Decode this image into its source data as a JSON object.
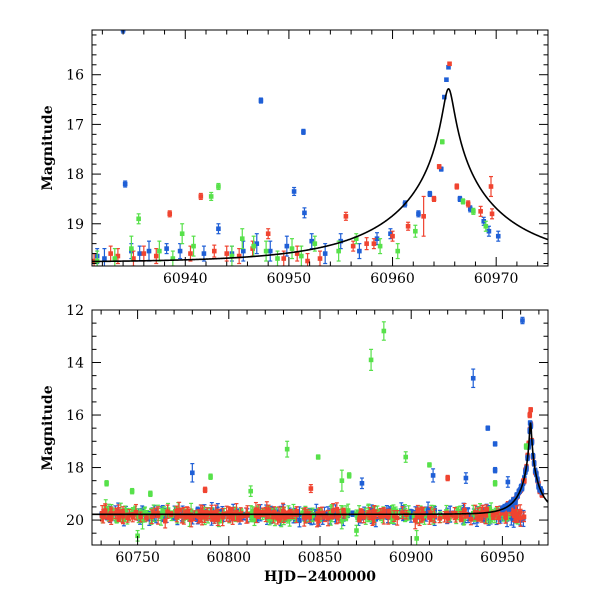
{
  "chart_data": [
    {
      "type": "scatter",
      "panel": "top",
      "xlim": [
        60931,
        60975
      ],
      "ylim": [
        19.85,
        15.1
      ],
      "xlabel": "",
      "ylabel": "Magnitude",
      "xticks_major": [
        60940,
        60950,
        60960,
        60970
      ],
      "xtick_labels": [
        "60940",
        "60950",
        "60960",
        "60970"
      ],
      "xticks_minor_step": 2,
      "yticks_major": [
        16,
        17,
        18,
        19
      ],
      "ytick_labels": [
        "16",
        "17",
        "18",
        "19"
      ],
      "yticks_minor_step": 0.2,
      "series_colors": {
        "blue": "#1f5fd6",
        "red": "#f04430",
        "green": "#57e14a"
      },
      "model": {
        "name": "PSPL fit",
        "color": "#000000",
        "t0": 60965.4,
        "u0": 0.04,
        "tE": 12,
        "base_mag": 19.78
      },
      "series": [
        {
          "name": "blue",
          "points": [
            [
              60931.5,
              19.65,
              0.15
            ],
            [
              60932.2,
              19.7,
              0.2
            ],
            [
              60934.0,
              15.1,
              0.06
            ],
            [
              60934.2,
              18.2,
              0.06
            ],
            [
              60934.8,
              19.55,
              0.15
            ],
            [
              60935.6,
              19.6,
              0.15
            ],
            [
              60936.5,
              19.55,
              0.2
            ],
            [
              60938.2,
              19.5,
              0.1
            ],
            [
              60939.5,
              19.55,
              0.15
            ],
            [
              60941.8,
              19.6,
              0.15
            ],
            [
              60943.2,
              19.1,
              0.1
            ],
            [
              60944.5,
              19.6,
              0.15
            ],
            [
              60945.6,
              19.55,
              0.2
            ],
            [
              60946.9,
              19.4,
              0.2
            ],
            [
              60947.3,
              16.52,
              0.05
            ],
            [
              60948.2,
              19.55,
              0.2
            ],
            [
              60949.8,
              19.45,
              0.2
            ],
            [
              60950.5,
              18.35,
              0.08
            ],
            [
              60951.4,
              17.15,
              0.05
            ],
            [
              60951.5,
              18.78,
              0.1
            ],
            [
              60952.2,
              19.35,
              0.15
            ],
            [
              60953.5,
              19.6,
              0.2
            ],
            [
              60955.0,
              19.35,
              0.15
            ],
            [
              60956.8,
              19.55,
              0.15
            ],
            [
              60958.5,
              19.3,
              0.12
            ],
            [
              60959.8,
              19.2,
              0.1
            ],
            [
              60961.2,
              18.6,
              0.06
            ],
            [
              60962.5,
              18.8,
              0.06
            ],
            [
              60963.6,
              18.4,
              0.05
            ],
            [
              60964.7,
              17.9,
              0.04
            ],
            [
              60965.0,
              16.45,
              0.03
            ],
            [
              60965.2,
              16.1,
              0.03
            ],
            [
              60965.4,
              15.85,
              0.03
            ],
            [
              60966.5,
              18.5,
              0.05
            ],
            [
              60967.5,
              18.7,
              0.06
            ],
            [
              60968.8,
              18.95,
              0.08
            ],
            [
              60969.3,
              19.15,
              0.1
            ],
            [
              60970.2,
              19.25,
              0.1
            ]
          ]
        },
        {
          "name": "red",
          "points": [
            [
              60931.2,
              19.75,
              0.15
            ],
            [
              60932.8,
              19.6,
              0.15
            ],
            [
              60933.5,
              19.65,
              0.15
            ],
            [
              60935.0,
              19.7,
              0.15
            ],
            [
              60936.0,
              19.6,
              0.15
            ],
            [
              60937.2,
              19.65,
              0.15
            ],
            [
              60938.5,
              18.8,
              0.06
            ],
            [
              60940.5,
              19.6,
              0.15
            ],
            [
              60941.5,
              18.45,
              0.06
            ],
            [
              60942.8,
              19.55,
              0.12
            ],
            [
              60944.0,
              19.6,
              0.15
            ],
            [
              60945.2,
              19.65,
              0.15
            ],
            [
              60946.5,
              19.5,
              0.15
            ],
            [
              60948.0,
              19.2,
              0.1
            ],
            [
              60949.5,
              19.7,
              0.15
            ],
            [
              60950.8,
              19.6,
              0.15
            ],
            [
              60951.8,
              19.75,
              0.15
            ],
            [
              60953.0,
              19.7,
              0.15
            ],
            [
              60955.5,
              18.85,
              0.08
            ],
            [
              60956.2,
              19.45,
              0.1
            ],
            [
              60957.5,
              19.4,
              0.12
            ],
            [
              60958.2,
              19.4,
              0.1
            ],
            [
              60960.0,
              19.25,
              0.1
            ],
            [
              60961.5,
              19.05,
              0.08
            ],
            [
              60963.0,
              18.85,
              0.4
            ],
            [
              60964.0,
              18.5,
              0.05
            ],
            [
              60964.5,
              17.85,
              0.04
            ],
            [
              60965.5,
              15.78,
              0.03
            ],
            [
              60966.2,
              18.25,
              0.05
            ],
            [
              60967.3,
              18.6,
              0.06
            ],
            [
              60968.5,
              18.75,
              0.1
            ],
            [
              60969.5,
              18.25,
              0.2
            ],
            [
              60969.6,
              18.8,
              0.1
            ]
          ]
        },
        {
          "name": "green",
          "points": [
            [
              60931.5,
              19.75,
              0.2
            ],
            [
              60933.2,
              19.7,
              0.2
            ],
            [
              60934.8,
              19.5,
              0.25
            ],
            [
              60935.5,
              18.9,
              0.1
            ],
            [
              60937.5,
              19.55,
              0.2
            ],
            [
              60938.8,
              19.7,
              0.15
            ],
            [
              60939.7,
              19.2,
              0.2
            ],
            [
              60940.8,
              19.45,
              0.2
            ],
            [
              60942.5,
              18.45,
              0.08
            ],
            [
              60943.2,
              18.25,
              0.06
            ],
            [
              60944.5,
              19.65,
              0.2
            ],
            [
              60945.5,
              19.3,
              0.2
            ],
            [
              60946.6,
              19.45,
              0.2
            ],
            [
              60947.8,
              19.55,
              0.2
            ],
            [
              60948.9,
              19.7,
              0.15
            ],
            [
              60950.3,
              19.5,
              0.2
            ],
            [
              60951.2,
              19.65,
              0.2
            ],
            [
              60952.5,
              19.4,
              0.15
            ],
            [
              60954.8,
              19.55,
              0.2
            ],
            [
              60956.5,
              19.3,
              0.1
            ],
            [
              60958.8,
              19.45,
              0.15
            ],
            [
              60960.5,
              19.55,
              0.15
            ],
            [
              60962.2,
              19.15,
              0.12
            ],
            [
              60964.8,
              17.35,
              0.04
            ],
            [
              60966.8,
              18.55,
              0.05
            ],
            [
              60967.8,
              18.75,
              0.06
            ],
            [
              60969.0,
              19.05,
              0.1
            ]
          ]
        }
      ]
    },
    {
      "type": "scatter",
      "panel": "bottom",
      "xlim": [
        60725,
        60975
      ],
      "ylim": [
        20.95,
        12.0
      ],
      "xlabel": "HJD−2400000",
      "ylabel": "Magnitude",
      "xticks_major": [
        60750,
        60800,
        60850,
        60900,
        60950
      ],
      "xtick_labels": [
        "60750",
        "60800",
        "60850",
        "60900",
        "60950"
      ],
      "xticks_minor_step": 10,
      "yticks_major": [
        12,
        14,
        16,
        18,
        20
      ],
      "ytick_labels": [
        "12",
        "14",
        "16",
        "18",
        "20"
      ],
      "yticks_minor_step": 0.5,
      "model": {
        "name": "PSPL fit",
        "color": "#000000",
        "t0": 60965.4,
        "u0": 0.04,
        "tE": 12,
        "base_mag": 19.78
      },
      "baseline_band": {
        "mag": 19.8,
        "scatter": 0.18,
        "t_start": 60730,
        "t_end": 60962,
        "n_per_series": 210
      },
      "outliers": [
        {
          "series": "green",
          "t": 60885,
          "mag": 12.8,
          "err": 0.35
        },
        {
          "series": "green",
          "t": 60878,
          "mag": 13.9,
          "err": 0.4
        },
        {
          "series": "blue",
          "t": 60961,
          "mag": 12.4,
          "err": 0.12
        },
        {
          "series": "blue",
          "t": 60934,
          "mag": 14.6,
          "err": 0.35
        },
        {
          "series": "blue",
          "t": 60942,
          "mag": 16.5,
          "err": 0.08
        },
        {
          "series": "blue",
          "t": 60946,
          "mag": 17.1,
          "err": 0.08
        },
        {
          "series": "blue",
          "t": 60780,
          "mag": 18.2,
          "err": 0.35
        },
        {
          "series": "blue",
          "t": 60873,
          "mag": 18.6,
          "err": 0.2
        },
        {
          "series": "blue",
          "t": 60912,
          "mag": 18.3,
          "err": 0.25
        },
        {
          "series": "blue",
          "t": 60930,
          "mag": 18.4,
          "err": 0.2
        },
        {
          "series": "blue",
          "t": 60946,
          "mag": 18.1,
          "err": 0.1
        },
        {
          "series": "blue",
          "t": 60953,
          "mag": 18.55,
          "err": 0.2
        },
        {
          "series": "green",
          "t": 60733,
          "mag": 18.6,
          "err": 0.1
        },
        {
          "series": "green",
          "t": 60747,
          "mag": 18.9,
          "err": 0.1
        },
        {
          "series": "green",
          "t": 60757,
          "mag": 19.0,
          "err": 0.1
        },
        {
          "series": "green",
          "t": 60790,
          "mag": 18.35,
          "err": 0.1
        },
        {
          "series": "green",
          "t": 60832,
          "mag": 17.3,
          "err": 0.3
        },
        {
          "series": "green",
          "t": 60849,
          "mag": 17.6,
          "err": 0.08
        },
        {
          "series": "green",
          "t": 60862,
          "mag": 18.5,
          "err": 0.4
        },
        {
          "series": "green",
          "t": 60866,
          "mag": 18.3,
          "err": 0.1
        },
        {
          "series": "green",
          "t": 60897,
          "mag": 17.6,
          "err": 0.2
        },
        {
          "series": "green",
          "t": 60910,
          "mag": 17.9,
          "err": 0.08
        },
        {
          "series": "green",
          "t": 60946,
          "mag": 18.6,
          "err": 0.1
        },
        {
          "series": "green",
          "t": 60963,
          "mag": 17.2,
          "err": 0.1
        },
        {
          "series": "green",
          "t": 60812,
          "mag": 18.9,
          "err": 0.2
        },
        {
          "series": "red",
          "t": 60787,
          "mag": 18.85,
          "err": 0.1
        },
        {
          "series": "red",
          "t": 60845,
          "mag": 18.8,
          "err": 0.15
        },
        {
          "series": "red",
          "t": 60920,
          "mag": 18.4,
          "err": 0.1
        },
        {
          "series": "red",
          "t": 60962,
          "mag": 18.5,
          "err": 0.08
        },
        {
          "series": "red",
          "t": 60965,
          "mag": 16.0,
          "err": 0.1
        },
        {
          "series": "red",
          "t": 60965.5,
          "mag": 15.8,
          "err": 0.08
        },
        {
          "series": "blue",
          "t": 60965.2,
          "mag": 16.3,
          "err": 0.08
        },
        {
          "series": "green",
          "t": 60750,
          "mag": 20.6,
          "err": 0.2
        },
        {
          "series": "green",
          "t": 60903,
          "mag": 20.7,
          "err": 0.3
        },
        {
          "series": "green",
          "t": 60870,
          "mag": 20.4,
          "err": 0.2
        }
      ]
    }
  ]
}
